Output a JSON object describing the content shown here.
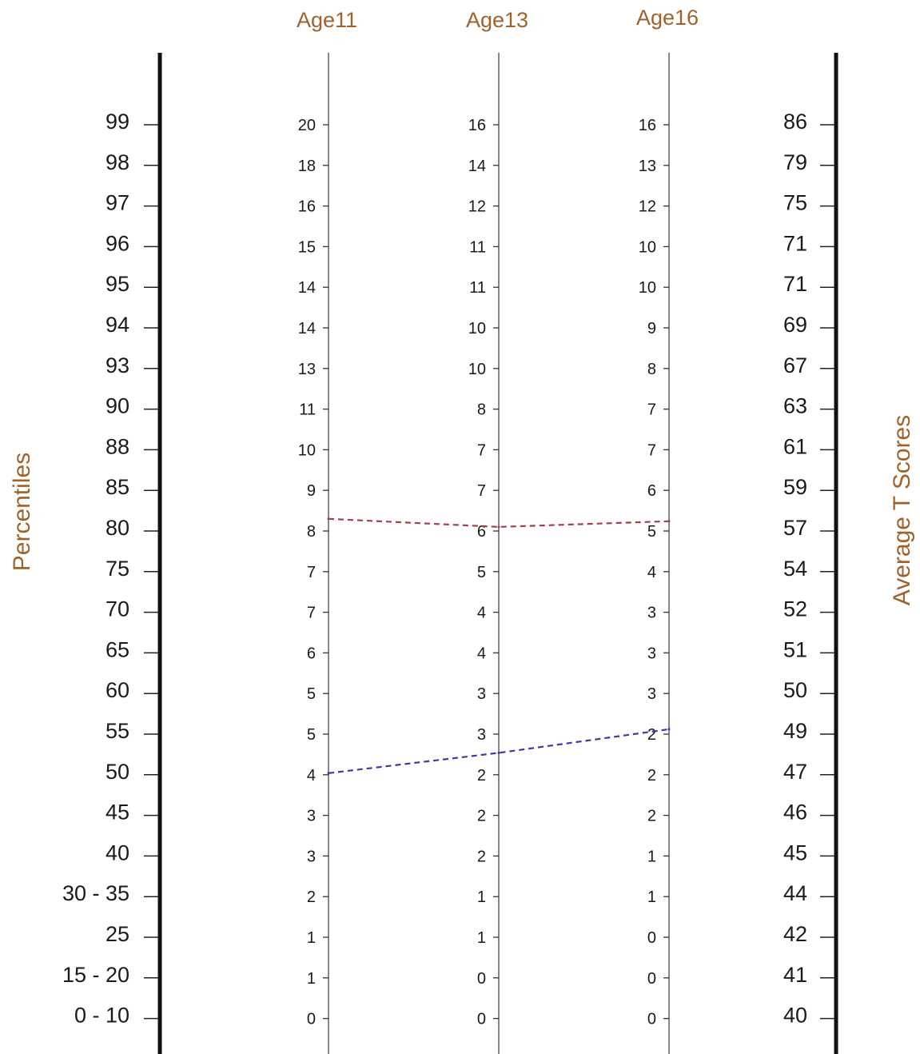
{
  "chart_data": {
    "type": "line",
    "xlabel": "",
    "ylabel": "Percentiles",
    "ylabel_right": "Average T Scores",
    "header_color": "#a0622a",
    "columns": [
      "Age11",
      "Age13",
      "Age16"
    ],
    "percentiles": [
      "99",
      "98",
      "97",
      "96",
      "95",
      "94",
      "93",
      "90",
      "88",
      "85",
      "80",
      "75",
      "70",
      "65",
      "60",
      "55",
      "50",
      "45",
      "40",
      "30 - 35",
      "25",
      "15 - 20",
      "0 - 10"
    ],
    "t_scores": [
      "86",
      "79",
      "75",
      "71",
      "71",
      "69",
      "67",
      "63",
      "61",
      "59",
      "57",
      "54",
      "52",
      "51",
      "50",
      "49",
      "47",
      "46",
      "45",
      "44",
      "42",
      "41",
      "40"
    ],
    "age_scales": [
      [
        "20",
        "18",
        "16",
        "15",
        "14",
        "14",
        "13",
        "11",
        "10",
        "9",
        "8",
        "7",
        "7",
        "6",
        "5",
        "5",
        "4",
        "3",
        "3",
        "2",
        "1",
        "1",
        "0"
      ],
      [
        "16",
        "14",
        "12",
        "11",
        "11",
        "10",
        "10",
        "8",
        "7",
        "7",
        "6",
        "5",
        "4",
        "4",
        "3",
        "3",
        "2",
        "2",
        "2",
        "1",
        "1",
        "0",
        "0"
      ],
      [
        "16",
        "13",
        "12",
        "10",
        "10",
        "9",
        "8",
        "7",
        "7",
        "6",
        "5",
        "4",
        "3",
        "3",
        "3",
        "2",
        "2",
        "2",
        "1",
        "1",
        "0",
        "0",
        "0"
      ]
    ],
    "series": [
      {
        "color": "#a0404a",
        "values": [
          81.5,
          80.5,
          81.2
        ]
      },
      {
        "color": "#3a3aa8",
        "values": [
          50.2,
          52.7,
          55.6
        ]
      }
    ]
  }
}
